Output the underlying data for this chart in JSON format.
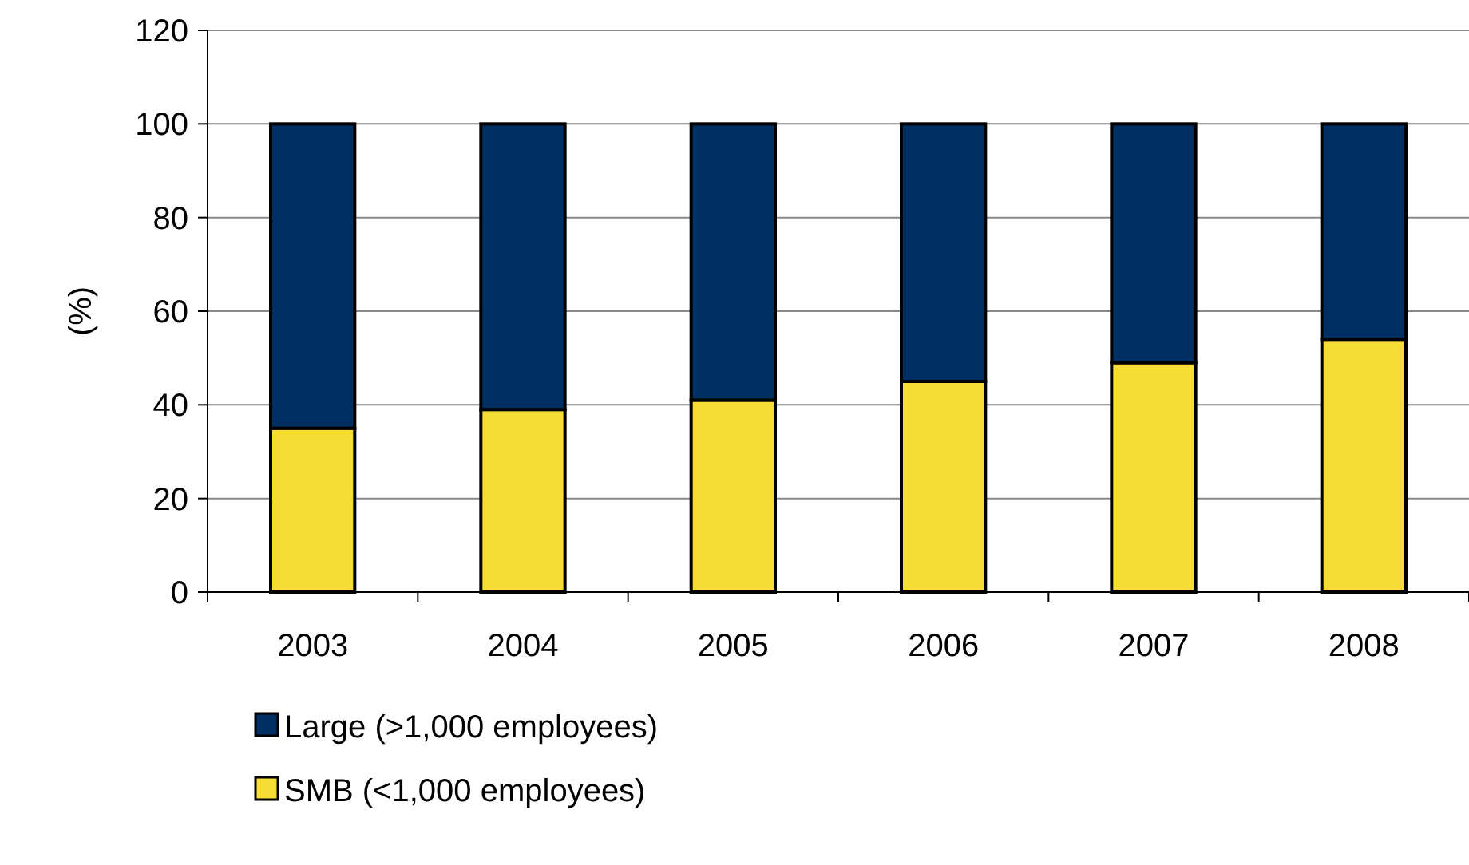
{
  "chart_data": {
    "type": "bar",
    "stacked": true,
    "ylabel": "(%)",
    "categories": [
      "2003",
      "2004",
      "2005",
      "2006",
      "2007",
      "2008"
    ],
    "series": [
      {
        "name": "SMB (<1,000 employees)",
        "color": "#f7dc35",
        "values": [
          35,
          39,
          41,
          45,
          49,
          54
        ]
      },
      {
        "name": "Large (>1,000 employees)",
        "color": "#002f64",
        "values": [
          65,
          61,
          59,
          55,
          51,
          46
        ]
      }
    ],
    "ylim": [
      0,
      120
    ],
    "yticks": [
      0,
      20,
      40,
      60,
      80,
      100,
      120
    ],
    "grid": "y",
    "legend": "bottom"
  }
}
